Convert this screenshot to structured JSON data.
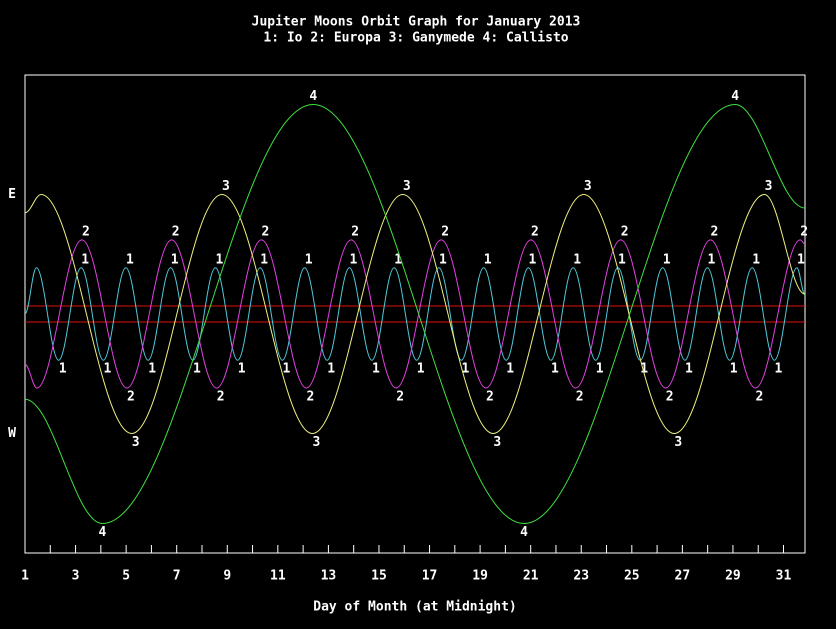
{
  "chart_data": {
    "type": "line",
    "title": "Jupiter Moons Orbit Graph for January 2013",
    "subtitle": "1: Io  2: Europa  3: Ganymede  4: Callisto",
    "x_label": "Day of Month (at Midnight)",
    "xlim": [
      1,
      31.85
    ],
    "xticks": [
      1,
      3,
      5,
      7,
      9,
      11,
      13,
      15,
      17,
      19,
      21,
      23,
      25,
      27,
      29,
      31
    ],
    "xminor_ticks": [
      2,
      4,
      6,
      8,
      10,
      12,
      14,
      16,
      18,
      20,
      22,
      24,
      26,
      28,
      30
    ],
    "ylim": [
      -30,
      30
    ],
    "yticks": [
      {
        "value": 15,
        "label": "E"
      },
      {
        "value": -15,
        "label": "W"
      }
    ],
    "disk_lines": [
      1,
      -1
    ],
    "disk_color": "#e01010",
    "series": [
      {
        "label": "1",
        "color": "#4fc8d8",
        "x": [
          1,
          1.45,
          2.33,
          3.22,
          4.1,
          4.99,
          5.87,
          6.76,
          7.64,
          8.53,
          9.41,
          10.3,
          11.18,
          12.06,
          12.95,
          13.83,
          14.72,
          15.6,
          16.49,
          17.37,
          18.26,
          19.14,
          20.03,
          20.91,
          21.8,
          22.68,
          23.57,
          24.45,
          25.33,
          26.22,
          27.1,
          27.99,
          28.87,
          29.76,
          30.64,
          31.53,
          31.85
        ],
        "values": [
          0,
          5.8,
          -5.8,
          5.8,
          -5.8,
          5.8,
          -5.8,
          5.8,
          -5.8,
          5.8,
          -5.8,
          5.8,
          -5.8,
          5.8,
          -5.8,
          5.8,
          -5.8,
          5.8,
          -5.8,
          5.8,
          -5.8,
          5.8,
          -5.8,
          5.8,
          -5.8,
          5.8,
          -5.8,
          5.8,
          -5.8,
          5.8,
          -5.8,
          5.8,
          -5.8,
          5.8,
          -5.8,
          5.8,
          2.4
        ]
      },
      {
        "label": "2",
        "color": "#e040e0",
        "x": [
          1,
          1.47,
          3.25,
          5.03,
          6.8,
          8.58,
          10.35,
          12.13,
          13.9,
          15.68,
          17.46,
          19.23,
          21.01,
          22.78,
          24.56,
          26.34,
          28.11,
          29.89,
          31.66,
          31.85
        ],
        "values": [
          -6.3,
          -9.3,
          9.3,
          -9.3,
          9.3,
          -9.3,
          9.3,
          -9.3,
          9.3,
          -9.3,
          9.3,
          -9.3,
          9.3,
          -9.3,
          9.3,
          -9.3,
          9.3,
          -9.3,
          9.3,
          8.8
        ]
      },
      {
        "label": "3",
        "color": "#f0f080",
        "x": [
          1,
          1.64,
          5.22,
          8.79,
          12.37,
          15.94,
          19.52,
          23.1,
          26.68,
          30.25,
          31.85
        ],
        "values": [
          12.7,
          15,
          -15,
          15,
          -15,
          15,
          -15,
          15,
          -15,
          15,
          2.5
        ]
      },
      {
        "label": "4",
        "color": "#40e040",
        "x": [
          1,
          4.06,
          12.4,
          20.74,
          29.09,
          31.85
        ],
        "values": [
          -10.7,
          -26.3,
          26.3,
          -26.3,
          26.3,
          13.3
        ]
      }
    ]
  }
}
